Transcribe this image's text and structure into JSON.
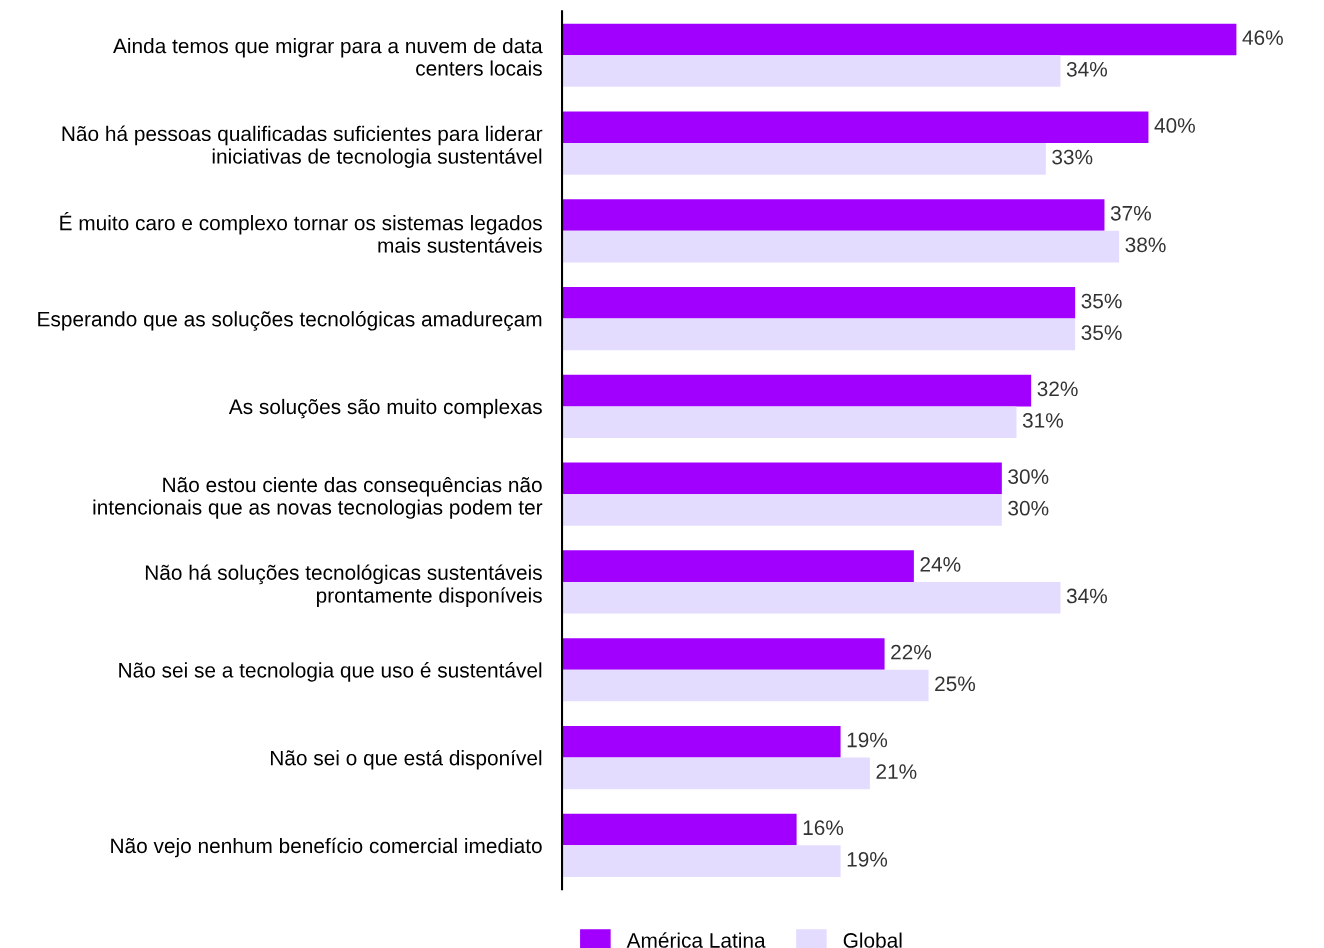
{
  "chart_data": {
    "type": "bar",
    "orientation": "horizontal",
    "legend": "bottom",
    "categories": [
      "Ainda temos que migrar para a nuvem de data\ncenters locais",
      "Não há pessoas qualificadas suficientes para liderar\niniciativas de tecnologia sustentável",
      "É muito caro e complexo tornar os sistemas legados\nmais sustentáveis",
      "Esperando que as soluções tecnológicas amadureçam",
      "As soluções são muito complexas",
      "Não estou ciente das consequências não\nintencionais que as novas tecnologias podem ter",
      "Não há soluções tecnológicas sustentáveis\nprontamente disponíveis",
      "Não sei se a tecnologia que uso é sustentável",
      "Não sei o que está disponível",
      "Não vejo nenhum benefício comercial imediato"
    ],
    "series": [
      {
        "name": "América Latina",
        "color": "#a100ff",
        "values": [
          46,
          40,
          37,
          35,
          32,
          30,
          24,
          22,
          19,
          16
        ],
        "value_labels": [
          "46%",
          "40%",
          "37%",
          "35%",
          "32%",
          "30%",
          "24%",
          "22%",
          "19%",
          "16%"
        ]
      },
      {
        "name": "Global",
        "color": "#e4dcff",
        "values": [
          34,
          33,
          38,
          35,
          31,
          30,
          34,
          25,
          21,
          19
        ],
        "value_labels": [
          "34%",
          "33%",
          "38%",
          "35%",
          "31%",
          "30%",
          "34%",
          "25%",
          "21%",
          "19%"
        ]
      }
    ]
  }
}
